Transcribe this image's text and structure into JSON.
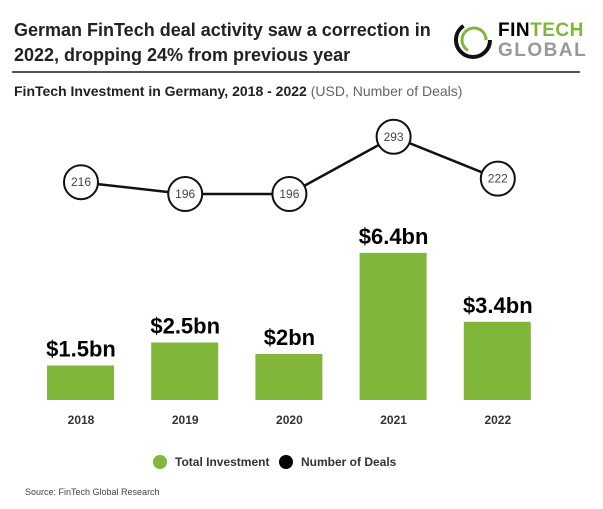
{
  "header": {
    "title": "German FinTech deal activity saw a correction in 2022, dropping 24% from previous year",
    "subtitle_bold": "FinTech Investment in Germany, 2018 - 2022",
    "subtitle_units": "(USD, Number of Deals)"
  },
  "logo": {
    "line1a": "FIN",
    "line1b": "TECH",
    "line2": "GLOBAL"
  },
  "source": "Source: FinTech Global Research",
  "colors": {
    "bar": "#80b73b",
    "line": "#111111",
    "logo_green": "#80b73b"
  },
  "chart_data": {
    "type": "bar+line",
    "categories": [
      "2018",
      "2019",
      "2020",
      "2021",
      "2022"
    ],
    "series": [
      {
        "name": "Total Investment",
        "type": "bar",
        "unit": "USD bn",
        "values": [
          1.5,
          2.5,
          2,
          6.4,
          3.4
        ],
        "labels": [
          "$1.5bn",
          "$2.5bn",
          "$2bn",
          "$6.4bn",
          "$3.4bn"
        ]
      },
      {
        "name": "Number of Deals",
        "type": "line",
        "values": [
          216,
          196,
          196,
          293,
          222
        ],
        "labels": [
          "216",
          "196",
          "196",
          "293",
          "222"
        ]
      }
    ],
    "legend": "bottom-center",
    "grid": false
  }
}
